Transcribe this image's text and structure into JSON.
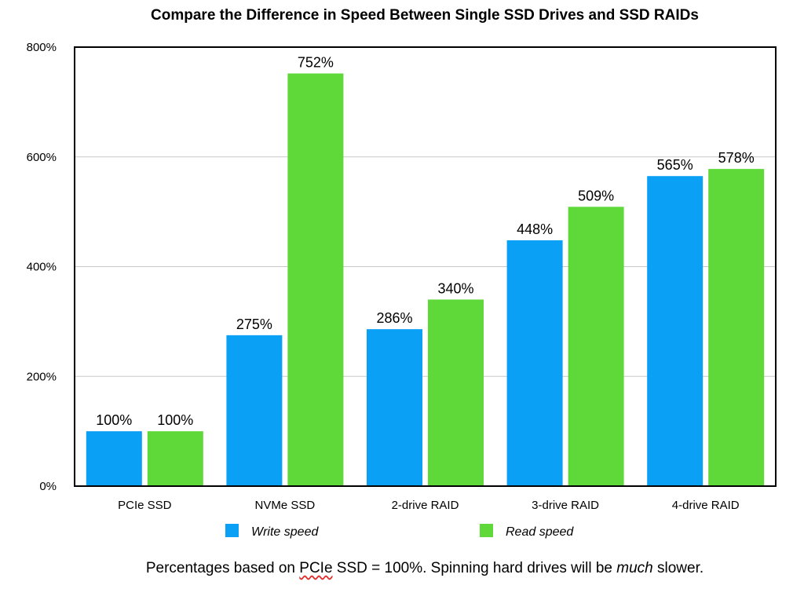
{
  "chart_data": {
    "type": "bar",
    "title": "Compare the Difference in Speed Between Single SSD Drives and SSD RAIDs",
    "xlabel": "",
    "ylabel": "",
    "ylim": [
      0,
      800
    ],
    "y_ticks": [
      0,
      200,
      400,
      600,
      800
    ],
    "y_tick_labels": [
      "0%",
      "200%",
      "400%",
      "600%",
      "800%"
    ],
    "grid": true,
    "legend_position": "bottom",
    "categories": [
      "PCIe SSD",
      "NVMe SSD",
      "2-drive RAID",
      "3-drive RAID",
      "4-drive RAID"
    ],
    "series": [
      {
        "name": "Write speed",
        "color": "#0aa0f5",
        "values": [
          100,
          275,
          286,
          448,
          565
        ],
        "labels": [
          "100%",
          "275%",
          "286%",
          "448%",
          "565%"
        ]
      },
      {
        "name": "Read speed",
        "color": "#5fd93a",
        "values": [
          100,
          752,
          340,
          509,
          578
        ],
        "labels": [
          "100%",
          "752%",
          "340%",
          "509%",
          "578%"
        ]
      }
    ]
  },
  "footnote": {
    "before": "Percentages based on ",
    "term": "PCIe",
    "after": " SSD = 100%. Spinning hard drives will be ",
    "emphasis": "much",
    "end": " slower."
  }
}
